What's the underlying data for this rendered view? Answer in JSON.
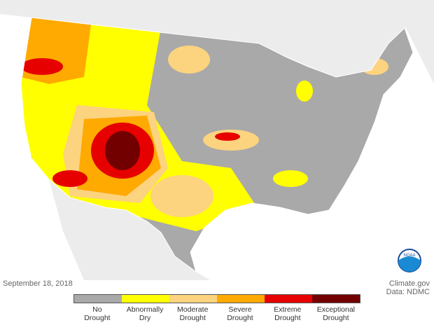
{
  "date": "September 18, 2018",
  "credit": {
    "site": "Climate.gov",
    "source": "Data: NDMC"
  },
  "logo": "NOAA",
  "legend": {
    "items": [
      {
        "label": "No Drought",
        "color": "#a9a9a9"
      },
      {
        "label": "Abnormally Dry",
        "color": "#ffff00"
      },
      {
        "label": "Moderate Drought",
        "color": "#fcd37f"
      },
      {
        "label": "Severe Drought",
        "color": "#ffaa00"
      },
      {
        "label": "Extreme Drought",
        "color": "#e60000"
      },
      {
        "label": "Exceptional Drought",
        "color": "#730000"
      }
    ]
  }
}
